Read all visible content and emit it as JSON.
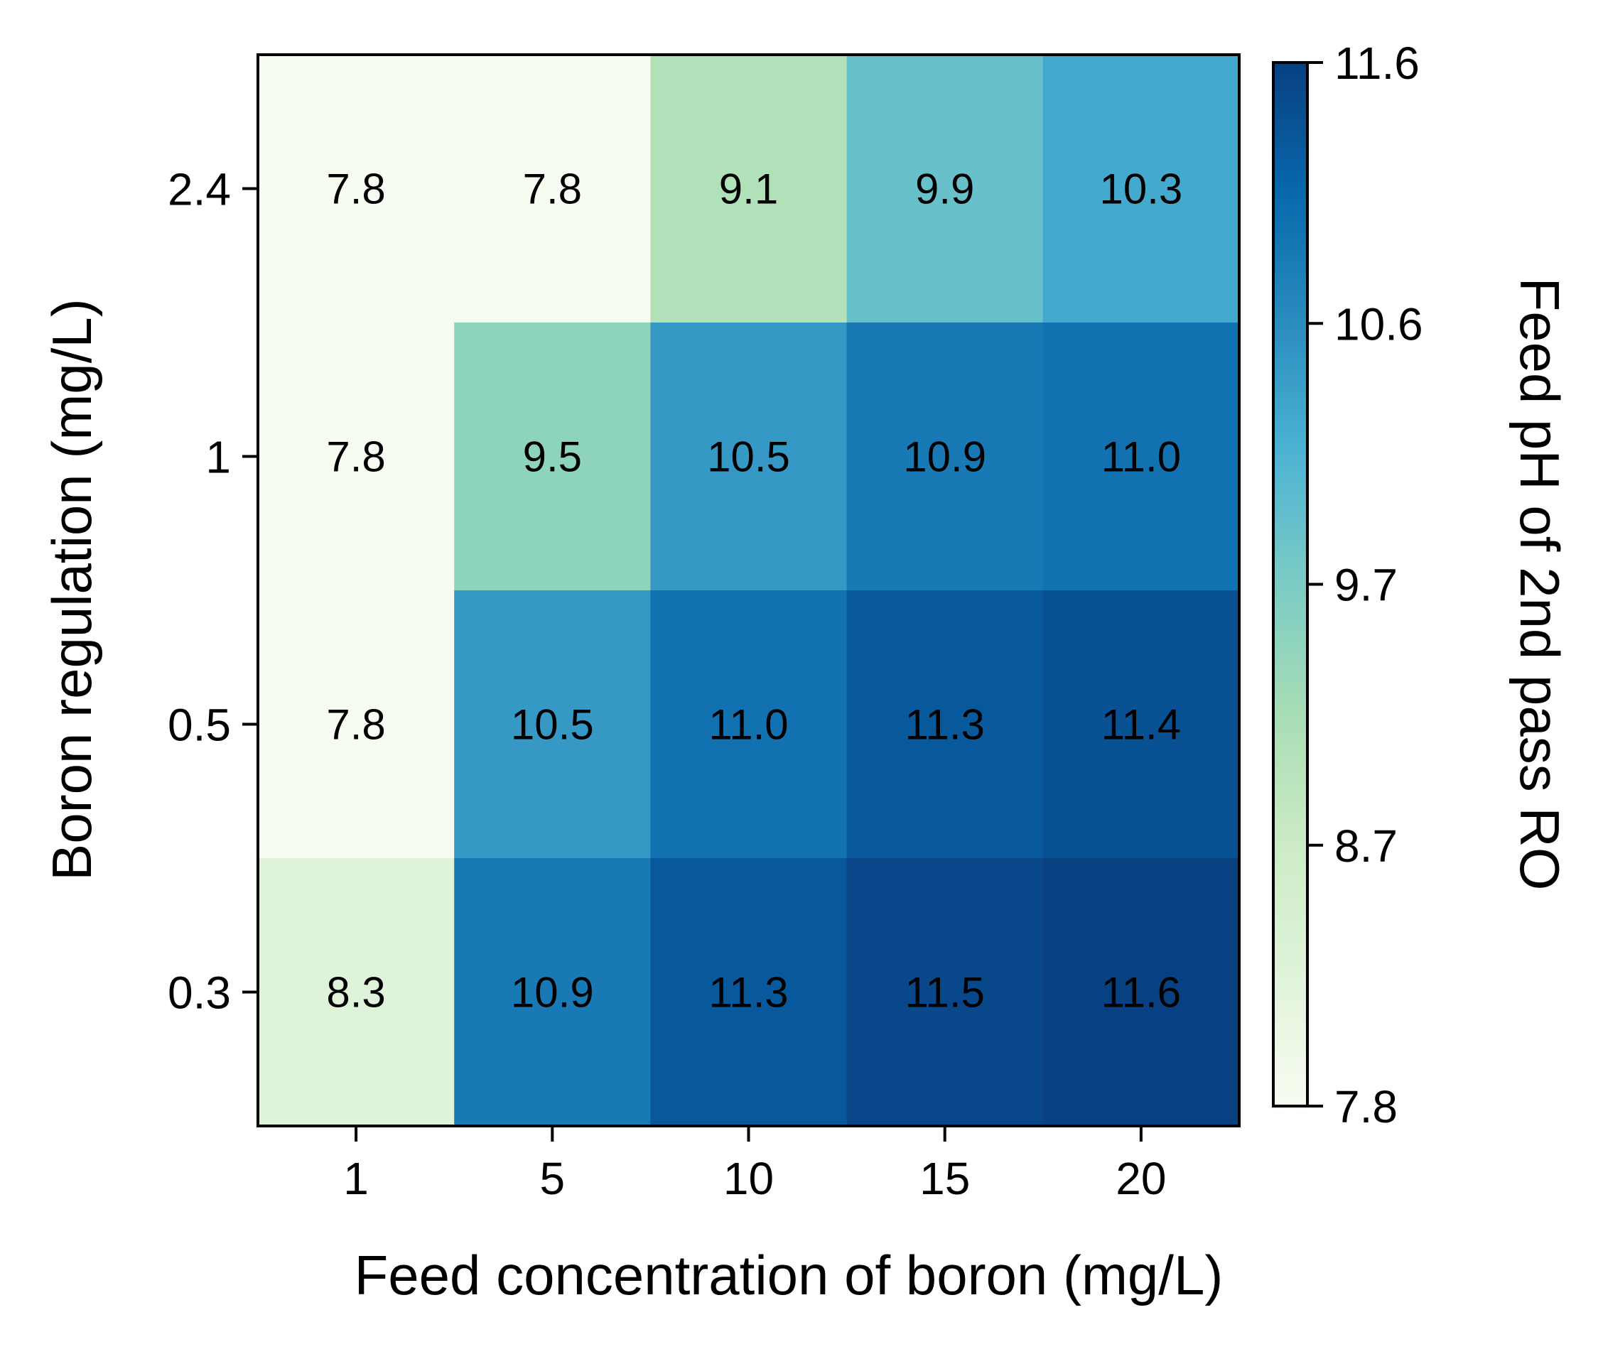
{
  "chart_data": {
    "type": "heatmap",
    "xlabel": "Feed concentration of boron (mg/L)",
    "ylabel": "Boron regulation (mg/L)",
    "x_categories": [
      "1",
      "5",
      "10",
      "15",
      "20"
    ],
    "y_categories": [
      "2.4",
      "1",
      "0.5",
      "0.3"
    ],
    "values": [
      [
        7.8,
        7.8,
        9.1,
        9.9,
        10.3
      ],
      [
        7.8,
        9.5,
        10.5,
        10.9,
        11.0
      ],
      [
        7.8,
        10.5,
        11.0,
        11.3,
        11.4
      ],
      [
        8.3,
        10.9,
        11.3,
        11.5,
        11.6
      ]
    ],
    "colorbar": {
      "label": "Feed pH of 2nd pass RO",
      "range": [
        7.8,
        11.6
      ],
      "ticks": [
        "7.8",
        "8.7",
        "9.7",
        "10.6",
        "11.6"
      ],
      "colormap": [
        "#f7fcf0",
        "#e0f3db",
        "#ccebc5",
        "#a8ddb5",
        "#7bccc4",
        "#4eb3d3",
        "#2b8cbe",
        "#0868ac",
        "#084081"
      ]
    },
    "grid": false
  }
}
